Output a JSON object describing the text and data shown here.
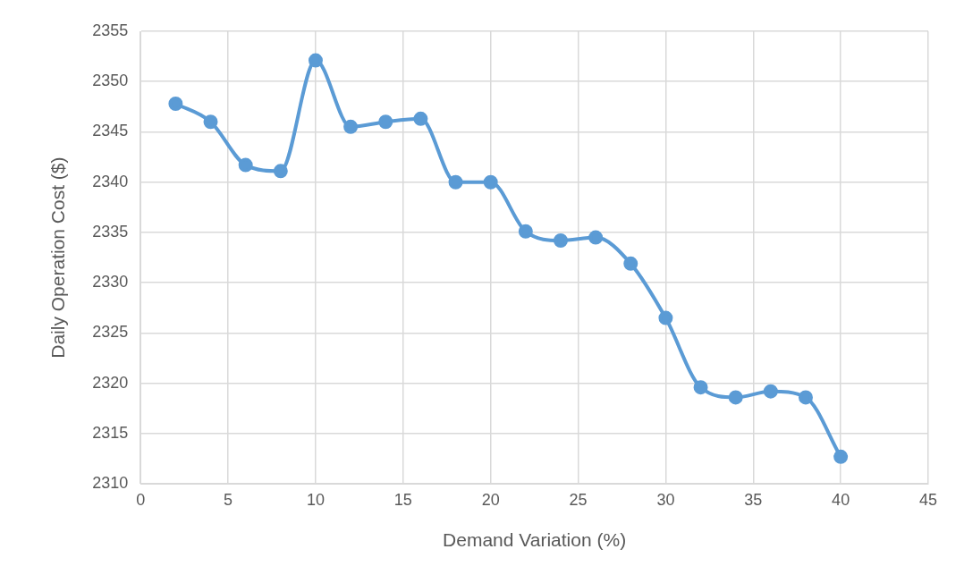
{
  "chart_data": {
    "type": "line",
    "xlabel": "Demand Variation (%)",
    "ylabel": "Daily Operation Cost ($)",
    "x": [
      2,
      4,
      6,
      8,
      10,
      12,
      14,
      16,
      18,
      20,
      22,
      24,
      26,
      28,
      30,
      32,
      34,
      36,
      38,
      40
    ],
    "series": [
      {
        "color": "#5b9bd5",
        "values": [
          2347.8,
          2346.0,
          2341.7,
          2341.1,
          2352.1,
          2345.5,
          2346.0,
          2346.3,
          2340.0,
          2340.0,
          2335.1,
          2334.2,
          2334.5,
          2331.9,
          2326.5,
          2319.6,
          2318.6,
          2319.2,
          2318.6,
          2312.7
        ]
      }
    ],
    "xlim": [
      0,
      45
    ],
    "xticks": [
      0,
      5,
      10,
      15,
      20,
      25,
      30,
      35,
      40,
      45
    ],
    "ylim": [
      2310,
      2355
    ],
    "yticks": [
      2310,
      2315,
      2320,
      2325,
      2330,
      2335,
      2340,
      2345,
      2350,
      2355
    ],
    "grid": true,
    "legend": false,
    "marker": "circle",
    "line_style": "solid"
  }
}
